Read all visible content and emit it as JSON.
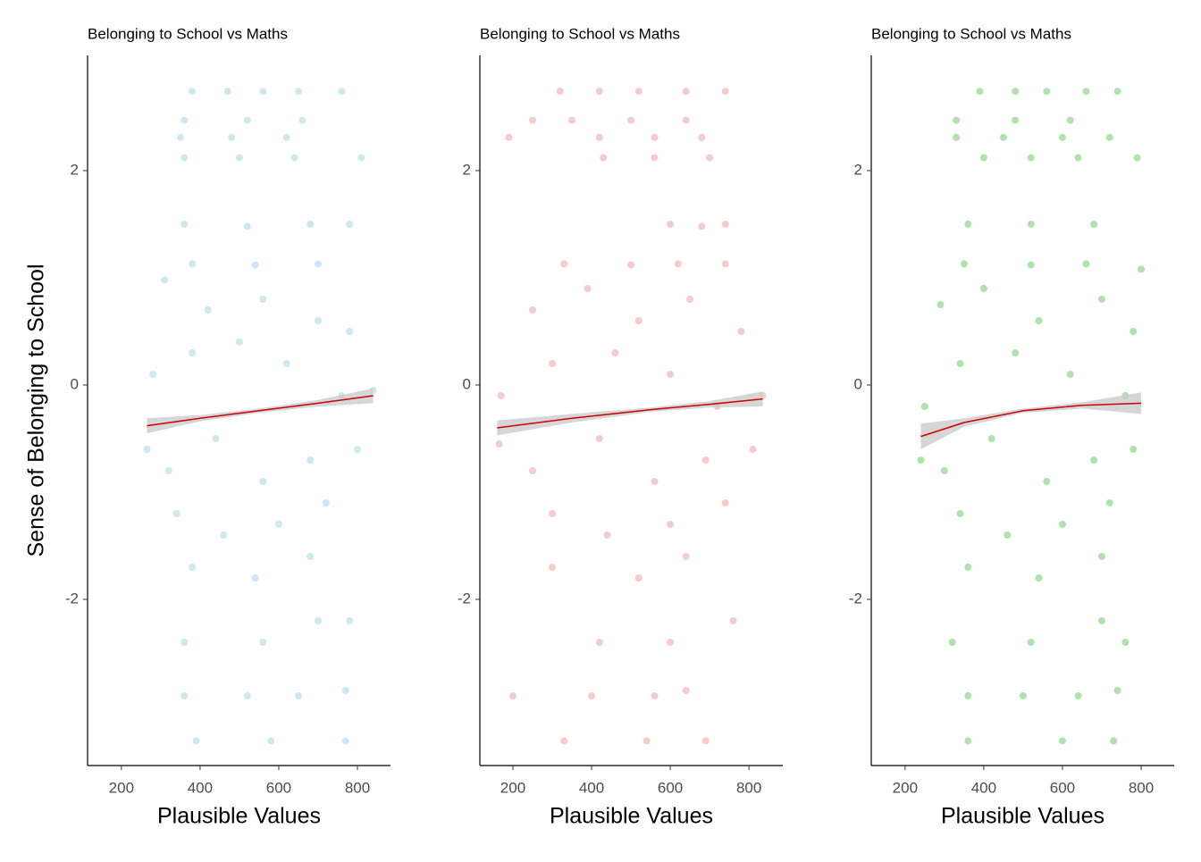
{
  "chart_data": [
    {
      "type": "scatter",
      "title": "Belonging to School vs Maths",
      "x_label": "Plausible Values",
      "y_label": "Sense of Belonging to School",
      "color": "#add8e6",
      "opacity": 0.6,
      "x": [
        380,
        470,
        560,
        650,
        760,
        360,
        520,
        660,
        350,
        480,
        620,
        360,
        500,
        640,
        810,
        360,
        520,
        680,
        780,
        380,
        540,
        700,
        310,
        420,
        560,
        700,
        780,
        280,
        380,
        500,
        620,
        760,
        840,
        265,
        320,
        440,
        560,
        680,
        800,
        340,
        460,
        600,
        720,
        380,
        540,
        680,
        360,
        560,
        700,
        780,
        360,
        520,
        650,
        770,
        390,
        580,
        770
      ],
      "y": [
        2.74,
        2.74,
        2.74,
        2.74,
        2.74,
        2.47,
        2.47,
        2.47,
        2.31,
        2.31,
        2.31,
        2.12,
        2.12,
        2.12,
        2.12,
        1.5,
        1.48,
        1.5,
        1.5,
        1.13,
        1.12,
        1.13,
        0.98,
        0.7,
        0.8,
        0.6,
        0.5,
        0.1,
        0.3,
        0.4,
        0.2,
        -0.1,
        -0.05,
        -0.6,
        -0.8,
        -0.5,
        -0.9,
        -0.7,
        -0.6,
        -1.2,
        -1.4,
        -1.3,
        -1.1,
        -1.7,
        -1.8,
        -1.6,
        -2.4,
        -2.4,
        -2.2,
        -2.2,
        -2.9,
        -2.9,
        -2.9,
        -2.85,
        -3.32,
        -3.32,
        -3.32
      ],
      "fit": {
        "color": "#cc0000",
        "band_color": "#cccccc",
        "x": [
          265,
          400,
          550,
          700,
          840
        ],
        "y": [
          -0.38,
          -0.31,
          -0.24,
          -0.17,
          -0.1
        ],
        "lower": [
          -0.45,
          -0.34,
          -0.26,
          -0.2,
          -0.17
        ],
        "upper": [
          -0.31,
          -0.28,
          -0.22,
          -0.14,
          -0.03
        ]
      },
      "xlim": [
        114,
        884
      ],
      "ylim": [
        -3.55,
        3.075
      ],
      "xticks": [
        200,
        400,
        600,
        800
      ],
      "yticks": [
        -2,
        0,
        2
      ]
    },
    {
      "type": "scatter",
      "title": "Belonging to School vs Maths",
      "x_label": "Plausible Values",
      "color": "#f0a8a8",
      "opacity": 0.6,
      "x": [
        320,
        420,
        520,
        640,
        740,
        250,
        350,
        500,
        640,
        190,
        420,
        560,
        680,
        430,
        560,
        700,
        600,
        680,
        740,
        330,
        500,
        620,
        740,
        250,
        390,
        520,
        650,
        780,
        170,
        300,
        460,
        600,
        720,
        835,
        165,
        250,
        420,
        560,
        690,
        810,
        300,
        440,
        600,
        740,
        300,
        520,
        640,
        420,
        600,
        760,
        200,
        400,
        560,
        640,
        330,
        540,
        690
      ],
      "y": [
        2.74,
        2.74,
        2.74,
        2.74,
        2.74,
        2.47,
        2.47,
        2.47,
        2.47,
        2.31,
        2.31,
        2.31,
        2.31,
        2.12,
        2.12,
        2.12,
        1.5,
        1.48,
        1.5,
        1.13,
        1.12,
        1.13,
        1.13,
        0.7,
        0.9,
        0.6,
        0.8,
        0.5,
        -0.1,
        0.2,
        0.3,
        0.1,
        -0.2,
        -0.1,
        -0.55,
        -0.8,
        -0.5,
        -0.9,
        -0.7,
        -0.6,
        -1.2,
        -1.4,
        -1.3,
        -1.1,
        -1.7,
        -1.8,
        -1.6,
        -2.4,
        -2.4,
        -2.2,
        -2.9,
        -2.9,
        -2.9,
        -2.85,
        -3.32,
        -3.32,
        -3.32
      ],
      "fit": {
        "color": "#cc0000",
        "band_color": "#cccccc",
        "x": [
          160,
          350,
          550,
          700,
          835
        ],
        "y": [
          -0.4,
          -0.31,
          -0.23,
          -0.18,
          -0.13
        ],
        "lower": [
          -0.47,
          -0.35,
          -0.25,
          -0.21,
          -0.2
        ],
        "upper": [
          -0.33,
          -0.27,
          -0.21,
          -0.15,
          -0.06
        ]
      },
      "xlim": [
        116,
        886
      ],
      "ylim": [
        -3.55,
        3.075
      ],
      "xticks": [
        200,
        400,
        600,
        800
      ],
      "yticks": [
        -2,
        0,
        2
      ]
    },
    {
      "type": "scatter",
      "title": "Belonging to School vs Maths",
      "x_label": "Plausible Values",
      "color": "#7ccf74",
      "opacity": 0.6,
      "x": [
        390,
        480,
        560,
        660,
        740,
        330,
        480,
        620,
        330,
        450,
        600,
        720,
        400,
        520,
        640,
        790,
        360,
        520,
        680,
        350,
        520,
        660,
        800,
        290,
        400,
        540,
        700,
        780,
        250,
        340,
        480,
        620,
        760,
        240,
        300,
        420,
        560,
        680,
        780,
        340,
        460,
        600,
        720,
        360,
        540,
        700,
        320,
        520,
        700,
        760,
        360,
        500,
        640,
        740,
        360,
        600,
        730
      ],
      "y": [
        2.74,
        2.74,
        2.74,
        2.74,
        2.74,
        2.47,
        2.47,
        2.47,
        2.31,
        2.31,
        2.31,
        2.31,
        2.12,
        2.12,
        2.12,
        2.12,
        1.5,
        1.5,
        1.5,
        1.13,
        1.12,
        1.13,
        1.08,
        0.75,
        0.9,
        0.6,
        0.8,
        0.5,
        -0.2,
        0.2,
        0.3,
        0.1,
        -0.1,
        -0.7,
        -0.8,
        -0.5,
        -0.9,
        -0.7,
        -0.6,
        -1.2,
        -1.4,
        -1.3,
        -1.1,
        -1.7,
        -1.8,
        -1.6,
        -2.4,
        -2.4,
        -2.2,
        -2.4,
        -2.9,
        -2.9,
        -2.9,
        -2.85,
        -3.32,
        -3.32,
        -3.32
      ],
      "fit": {
        "color": "#cc0000",
        "band_color": "#cccccc",
        "x": [
          240,
          350,
          500,
          650,
          800
        ],
        "y": [
          -0.48,
          -0.35,
          -0.24,
          -0.19,
          -0.17
        ],
        "lower": [
          -0.6,
          -0.39,
          -0.26,
          -0.22,
          -0.27
        ],
        "upper": [
          -0.36,
          -0.31,
          -0.22,
          -0.16,
          -0.07
        ]
      },
      "xlim": [
        114,
        884
      ],
      "ylim": [
        -3.55,
        3.075
      ],
      "xticks": [
        200,
        400,
        600,
        800
      ],
      "yticks": [
        -2,
        0,
        2
      ]
    }
  ]
}
